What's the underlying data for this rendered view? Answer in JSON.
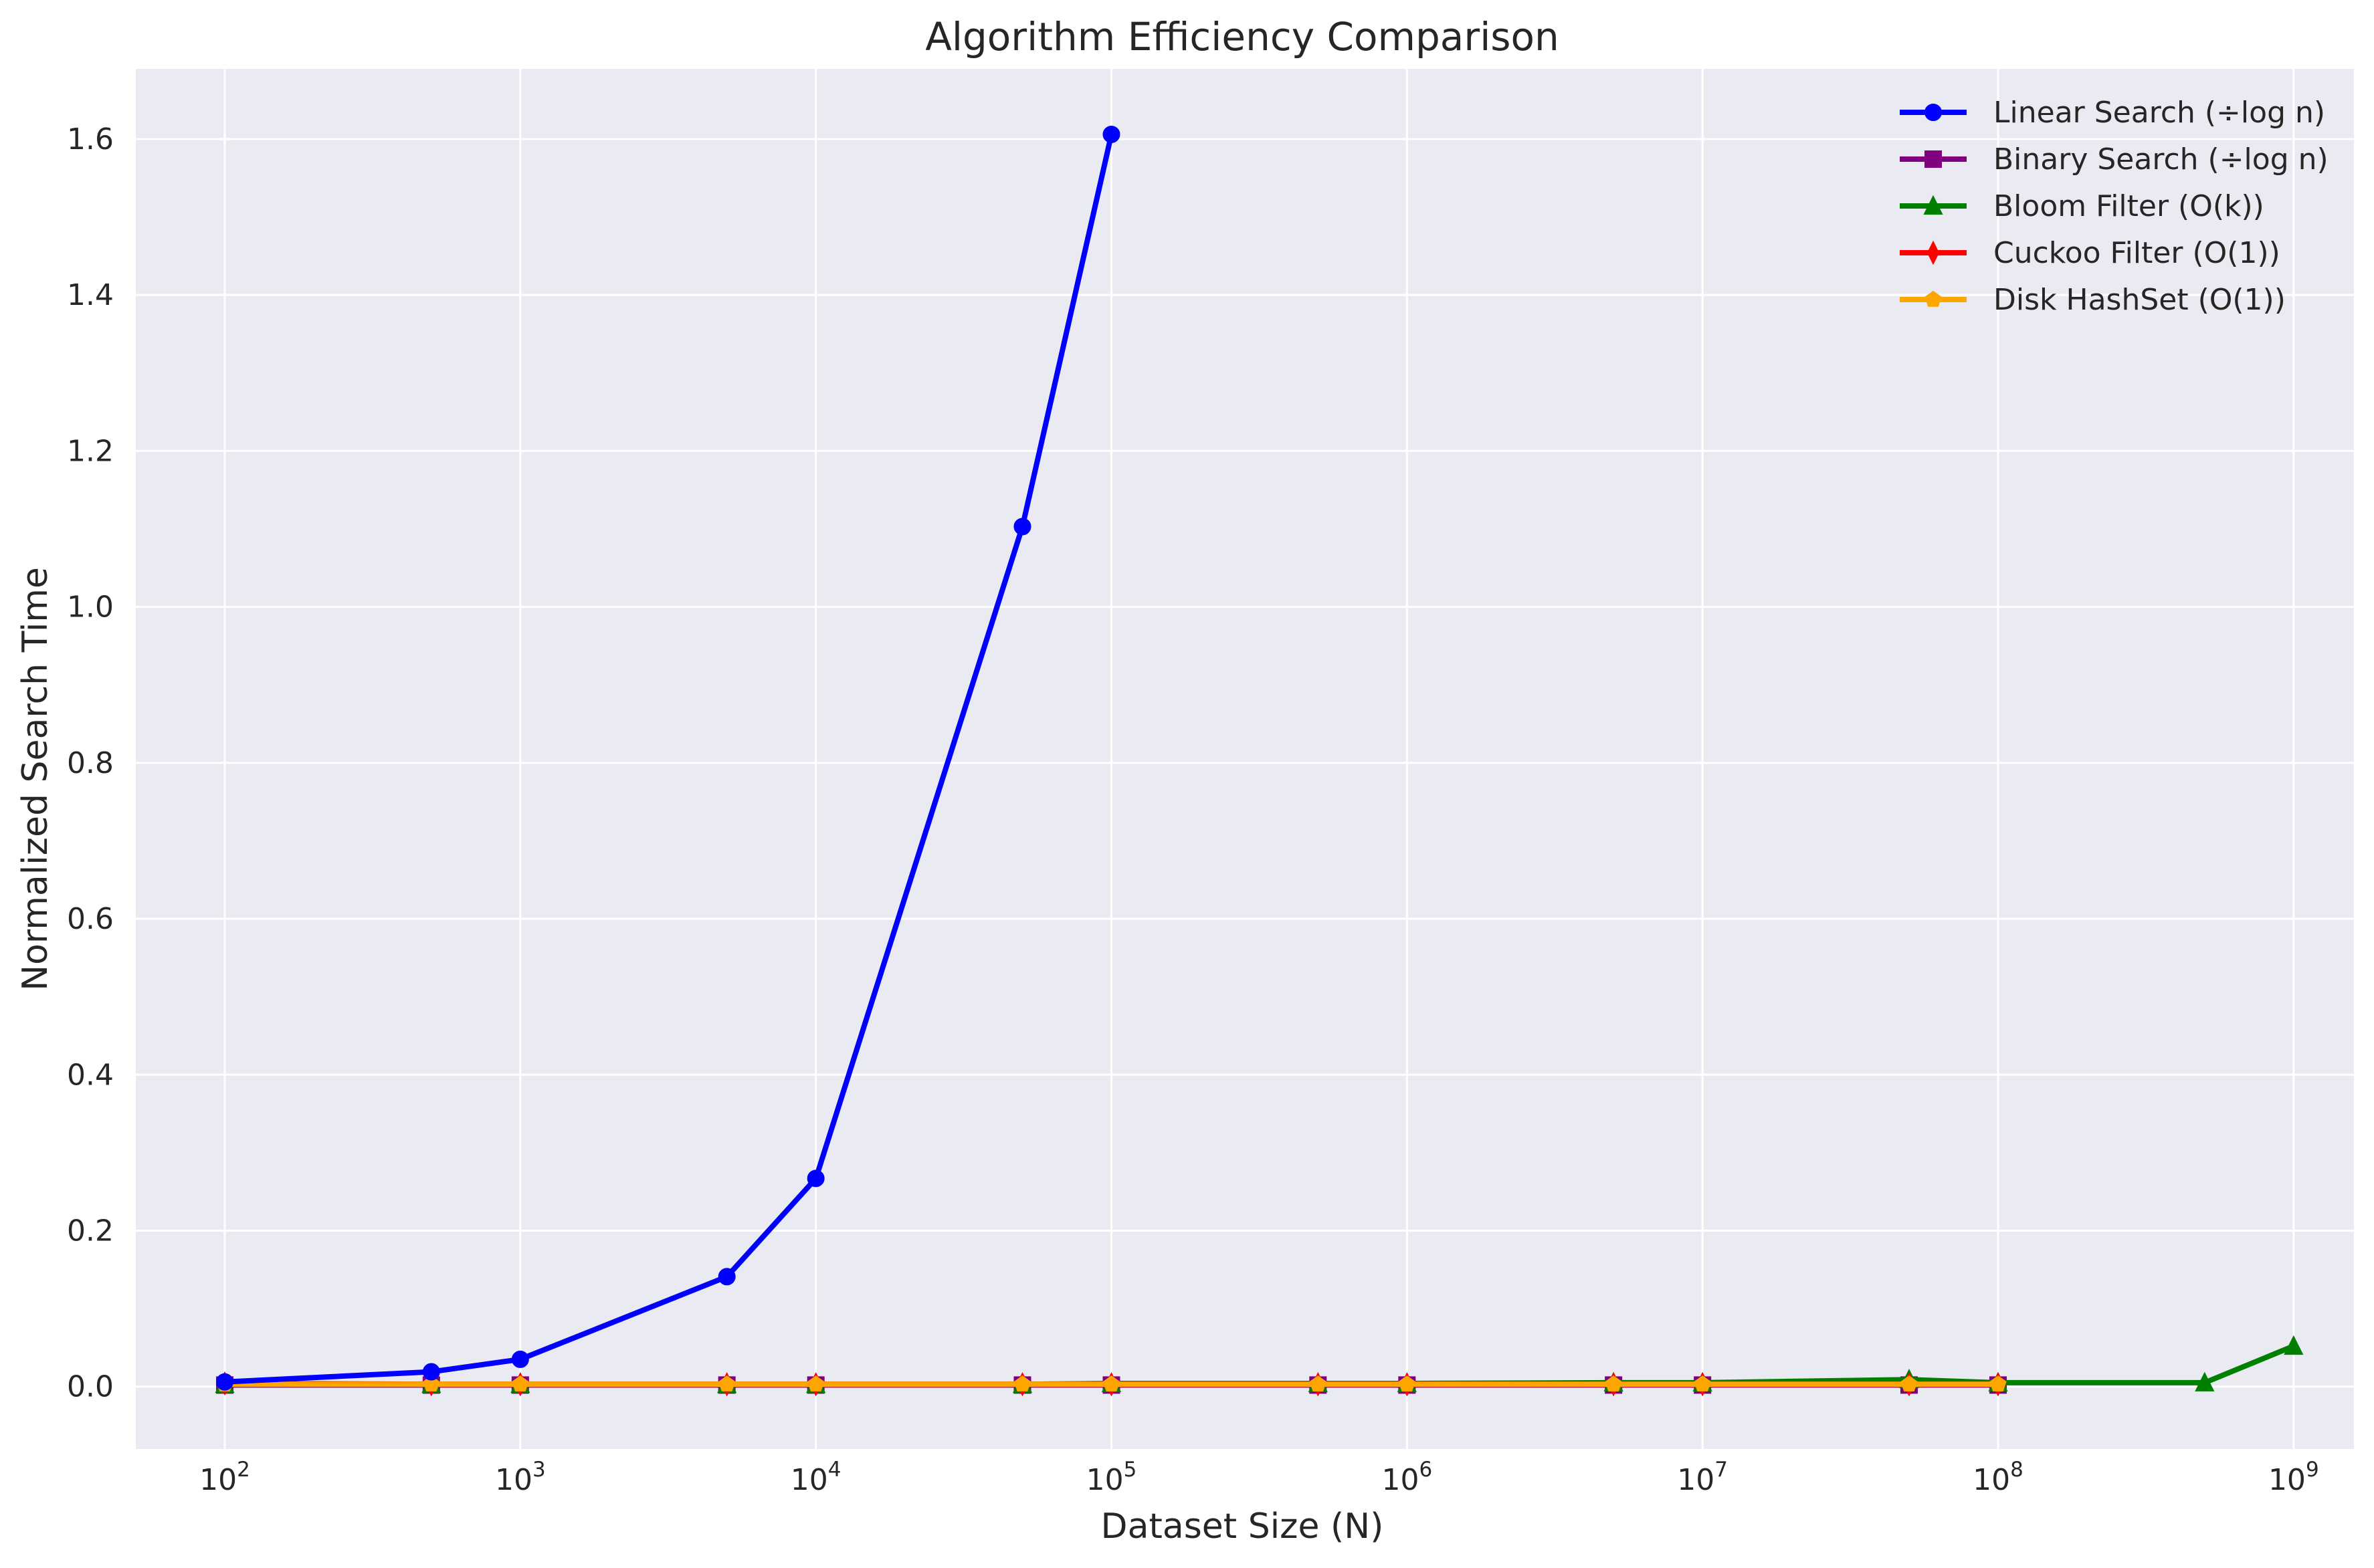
{
  "chart_data": {
    "type": "line",
    "title": "Algorithm Efficiency Comparison",
    "xlabel": "Dataset Size (N)",
    "ylabel": "Normalized Search Time",
    "xscale": "log",
    "xlim": [
      50,
      1600000000
    ],
    "ylim": [
      -0.08,
      1.69
    ],
    "x_ticks": [
      {
        "value": 100,
        "base": "10",
        "exp": "2"
      },
      {
        "value": 1000,
        "base": "10",
        "exp": "3"
      },
      {
        "value": 10000,
        "base": "10",
        "exp": "4"
      },
      {
        "value": 100000,
        "base": "10",
        "exp": "5"
      },
      {
        "value": 1000000,
        "base": "10",
        "exp": "6"
      },
      {
        "value": 10000000,
        "base": "10",
        "exp": "7"
      },
      {
        "value": 100000000,
        "base": "10",
        "exp": "8"
      },
      {
        "value": 1000000000,
        "base": "10",
        "exp": "9"
      }
    ],
    "y_ticks": [
      {
        "value": 0.0,
        "label": "0.0"
      },
      {
        "value": 0.2,
        "label": "0.2"
      },
      {
        "value": 0.4,
        "label": "0.4"
      },
      {
        "value": 0.6,
        "label": "0.6"
      },
      {
        "value": 0.8,
        "label": "0.8"
      },
      {
        "value": 1.0,
        "label": "1.0"
      },
      {
        "value": 1.2,
        "label": "1.2"
      },
      {
        "value": 1.4,
        "label": "1.4"
      },
      {
        "value": 1.6,
        "label": "1.6"
      }
    ],
    "grid": true,
    "legend": "top-right",
    "background": "#eaeaf2",
    "series": [
      {
        "name": "Linear Search (÷log n)",
        "color": "#0000ff",
        "marker": "circle",
        "x": [
          100,
          500,
          1000,
          5000,
          10000,
          50000,
          100000
        ],
        "y": [
          0.006,
          0.019,
          0.035,
          0.141,
          0.267,
          1.103,
          1.606
        ]
      },
      {
        "name": "Binary Search (÷log n)",
        "color": "#800080",
        "marker": "square",
        "x": [
          100,
          500,
          1000,
          5000,
          10000,
          50000,
          100000,
          500000,
          1000000,
          5000000,
          10000000,
          50000000,
          100000000
        ],
        "y": [
          0.002,
          0.002,
          0.002,
          0.002,
          0.002,
          0.002,
          0.002,
          0.002,
          0.002,
          0.002,
          0.002,
          0.002,
          0.002
        ]
      },
      {
        "name": "Bloom Filter (O(k))",
        "color": "#008000",
        "marker": "triangle",
        "x": [
          100,
          500,
          1000,
          5000,
          10000,
          50000,
          100000,
          500000,
          1000000,
          5000000,
          10000000,
          50000000,
          100000000,
          500000000,
          1000000000
        ],
        "y": [
          0.003,
          0.003,
          0.003,
          0.003,
          0.003,
          0.003,
          0.004,
          0.004,
          0.004,
          0.005,
          0.005,
          0.009,
          0.005,
          0.005,
          0.052
        ]
      },
      {
        "name": "Cuckoo Filter (O(1))",
        "color": "#ff0000",
        "marker": "diamond",
        "x": [
          100,
          500,
          1000,
          5000,
          10000,
          50000,
          100000,
          500000,
          1000000,
          5000000,
          10000000,
          50000000,
          100000000
        ],
        "y": [
          0.004,
          0.003,
          0.003,
          0.003,
          0.003,
          0.003,
          0.003,
          0.003,
          0.003,
          0.003,
          0.003,
          0.003,
          0.003
        ]
      },
      {
        "name": "Disk HashSet (O(1))",
        "color": "#ffa500",
        "marker": "pentagon",
        "x": [
          100,
          500,
          1000,
          5000,
          10000,
          50000,
          100000,
          500000,
          1000000,
          5000000,
          10000000,
          50000000,
          100000000
        ],
        "y": [
          0.003,
          0.003,
          0.003,
          0.003,
          0.003,
          0.003,
          0.003,
          0.003,
          0.003,
          0.003,
          0.003,
          0.003,
          0.003
        ]
      }
    ]
  }
}
